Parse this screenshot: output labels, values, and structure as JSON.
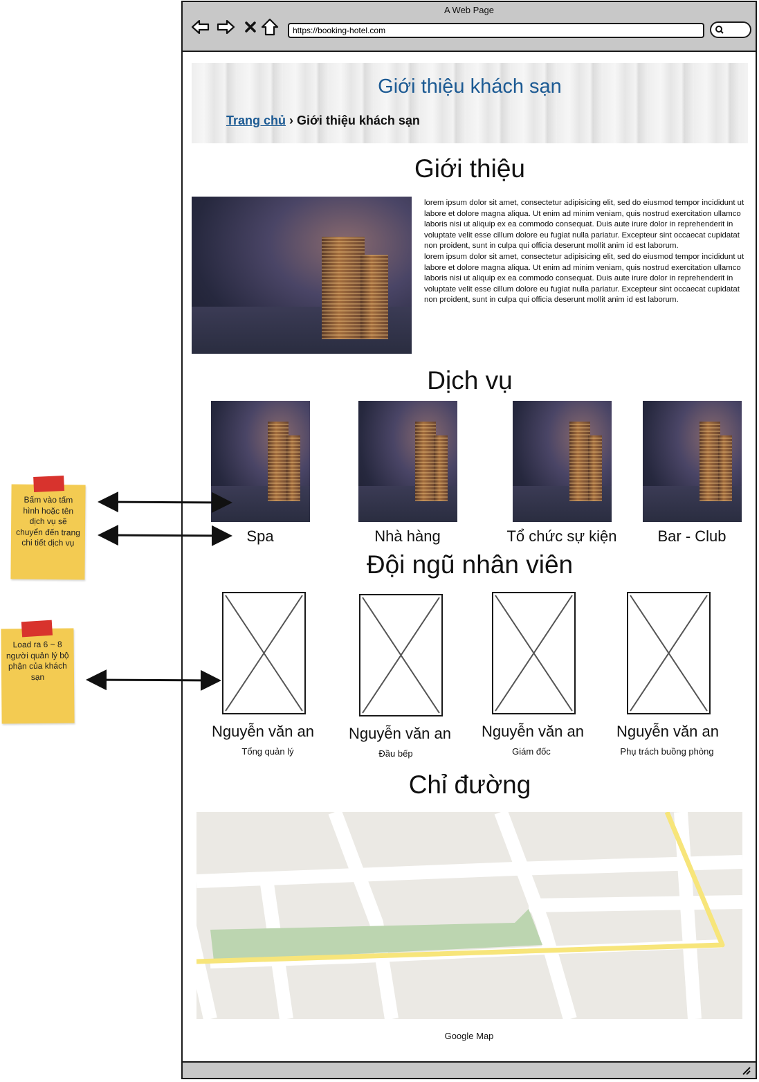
{
  "browser": {
    "window_title": "A Web Page",
    "url": "https://booking-hotel.com"
  },
  "header": {
    "title": "Giới thiệu khách sạn",
    "breadcrumb": {
      "home": "Trang chủ",
      "separator": "›",
      "current": "Giới thiệu khách sạn"
    }
  },
  "intro": {
    "heading": "Giới thiệu",
    "paragraph1": "lorem ipsum dolor sit amet, consectetur adipisicing elit, sed do eiusmod tempor incididunt ut labore et dolore magna aliqua. Ut enim ad minim veniam, quis nostrud exercitation ullamco laboris nisi ut aliquip ex ea commodo consequat. Duis aute irure dolor in reprehenderit in voluptate velit esse cillum dolore eu fugiat nulla pariatur. Excepteur sint occaecat cupidatat non proident, sunt in culpa qui officia deserunt mollit anim id est laborum.",
    "paragraph2": "lorem ipsum dolor sit amet, consectetur adipisicing elit, sed do eiusmod tempor incididunt ut labore et dolore magna aliqua. Ut enim ad minim veniam, quis nostrud exercitation ullamco laboris nisi ut aliquip ex ea commodo consequat. Duis aute irure dolor in reprehenderit in voluptate velit esse cillum dolore eu fugiat nulla pariatur. Excepteur sint occaecat cupidatat non proident, sunt in culpa qui officia deserunt mollit anim id est laborum."
  },
  "services": {
    "heading": "Dịch vụ",
    "items": [
      {
        "name": "Spa"
      },
      {
        "name": "Nhà hàng"
      },
      {
        "name": "Tổ chức sự kiện"
      },
      {
        "name": "Bar - Club"
      }
    ]
  },
  "staff": {
    "heading": "Đội ngũ nhân viên",
    "members": [
      {
        "name": "Nguyễn văn an",
        "role": "Tổng quản lý"
      },
      {
        "name": "Nguyễn văn an",
        "role": "Đầu bếp"
      },
      {
        "name": "Nguyễn văn an",
        "role": "Giám đốc"
      },
      {
        "name": "Nguyễn văn an",
        "role": "Phụ trách buồng phòng"
      }
    ]
  },
  "directions": {
    "heading": "Chỉ đường",
    "map_caption": "Google Map"
  },
  "notes": [
    {
      "text": "Bấm vào tấm hình hoặc tên dịch vụ sẽ chuyển đến trang chi tiết dịch vụ"
    },
    {
      "text": "Load ra 6 ~ 8 người quản lý bộ phận của khách sạn"
    }
  ],
  "colors": {
    "accent": "#1c5a93",
    "note": "#f3cb52",
    "tape": "#d8332d",
    "route": "#f7e57a",
    "park": "#bcd5b0"
  }
}
